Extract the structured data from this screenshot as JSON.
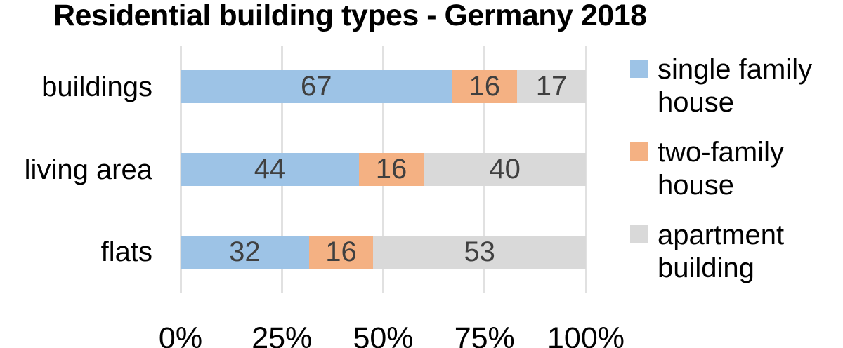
{
  "chart_data": {
    "type": "bar",
    "orientation": "horizontal-stacked",
    "title": "Residential building types - Germany 2018",
    "categories": [
      "buildings",
      "living area",
      "flats"
    ],
    "series": [
      {
        "name": "single family house",
        "color": "#9DC3E6",
        "values": [
          67,
          44,
          32
        ]
      },
      {
        "name": "two-family house",
        "color": "#F4B183",
        "values": [
          16,
          16,
          16
        ]
      },
      {
        "name": "apartment building",
        "color": "#D9D9D9",
        "values": [
          17,
          40,
          53
        ]
      }
    ],
    "x_ticks": [
      "0%",
      "25%",
      "50%",
      "75%",
      "100%"
    ],
    "xlim": [
      0,
      100
    ],
    "grid": true,
    "legend_position": "right",
    "value_label_color": "#404040",
    "gridline_color": "#E1E1E1"
  }
}
